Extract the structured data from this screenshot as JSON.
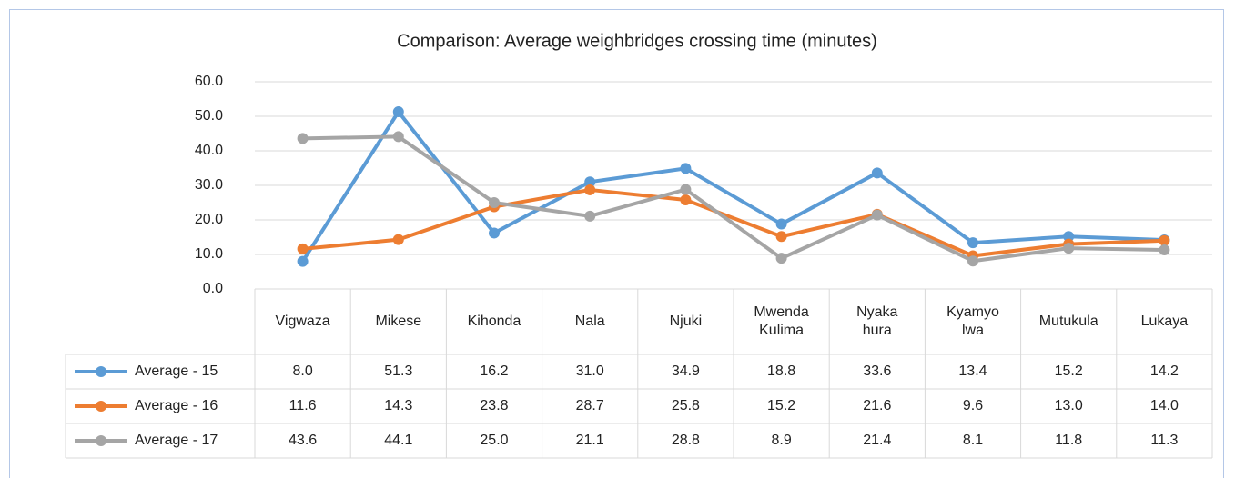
{
  "chart_data": {
    "type": "line",
    "title": "Comparison: Average weighbridges crossing time (minutes)",
    "categories": [
      "Vigwaza",
      "Mikese",
      "Kihonda",
      "Nala",
      "Njuki",
      "Mwenda\nKulima",
      "Nyaka\nhura",
      "Kyamyo\nlwa",
      "Mutukula",
      "Lukaya"
    ],
    "series": [
      {
        "name": "Average - 15",
        "color": "#5b9bd5",
        "values": [
          8.0,
          51.3,
          16.2,
          31.0,
          34.9,
          18.8,
          33.6,
          13.4,
          15.2,
          14.2
        ],
        "value_labels": [
          "8.0",
          "51.3",
          "16.2",
          "31.0",
          "34.9",
          "18.8",
          "33.6",
          "13.4",
          "15.2",
          "14.2"
        ]
      },
      {
        "name": "Average - 16",
        "color": "#ed7d31",
        "values": [
          11.6,
          14.3,
          23.8,
          28.7,
          25.8,
          15.2,
          21.6,
          9.6,
          13.0,
          14.0
        ],
        "value_labels": [
          "11.6",
          "14.3",
          "23.8",
          "28.7",
          "25.8",
          "15.2",
          "21.6",
          "9.6",
          "13.0",
          "14.0"
        ]
      },
      {
        "name": "Average - 17",
        "color": "#a5a5a5",
        "values": [
          43.6,
          44.1,
          25.0,
          21.1,
          28.8,
          8.9,
          21.4,
          8.1,
          11.8,
          11.3
        ],
        "value_labels": [
          "43.6",
          "44.1",
          "25.0",
          "21.1",
          "28.8",
          "8.9",
          "21.4",
          "8.1",
          "11.8",
          "11.3"
        ]
      }
    ],
    "ylim": [
      0,
      60
    ],
    "yticks": [
      {
        "value": 0,
        "label": "0.0"
      },
      {
        "value": 10,
        "label": "10.0"
      },
      {
        "value": 20,
        "label": "20.0"
      },
      {
        "value": 30,
        "label": "30.0"
      },
      {
        "value": 40,
        "label": "40.0"
      },
      {
        "value": 50,
        "label": "50.0"
      },
      {
        "value": 60,
        "label": "60.0"
      }
    ],
    "grid": true
  }
}
